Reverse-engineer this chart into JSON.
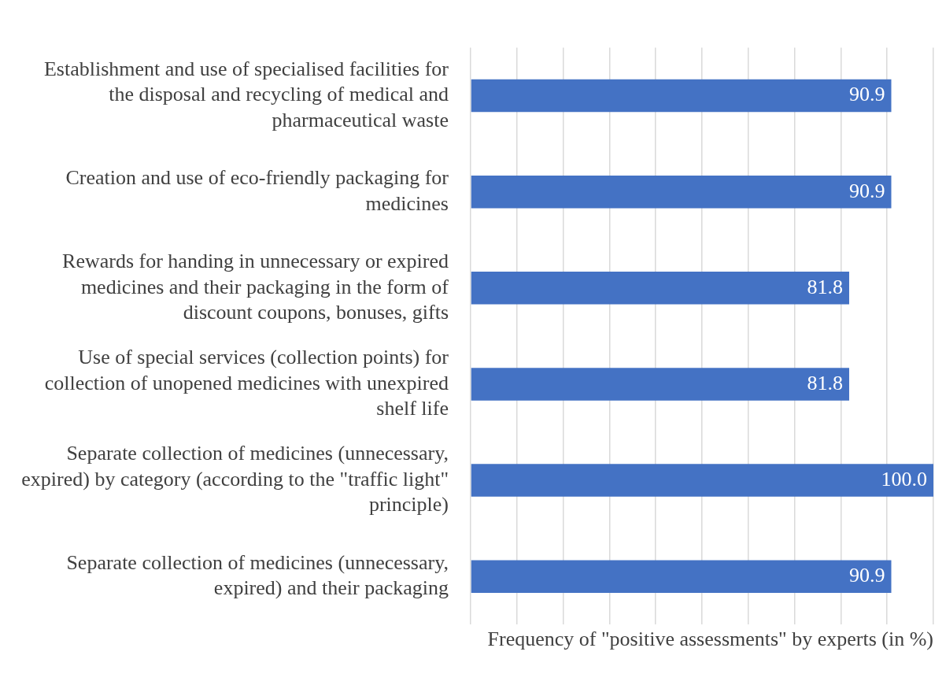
{
  "chart_data": {
    "type": "bar",
    "orientation": "horizontal",
    "xlabel": "Frequency of \"positive assessments\" by experts (in %)",
    "categories": [
      "Establishment and use of specialised facilities for the disposal and recycling of medical and pharmaceutical waste",
      "Creation and use of eco-friendly packaging for medicines",
      "Rewards for handing in unnecessary or expired medicines and their packaging in the form of discount coupons, bonuses, gifts",
      "Use of special services (collection points) for collection of unopened medicines with unexpired shelf life",
      "Separate collection of medicines (unnecessary, expired) by category (according to the \"traffic light\" principle)",
      "Separate collection of medicines (unnecessary, expired) and their packaging"
    ],
    "values": [
      90.9,
      90.9,
      81.8,
      81.8,
      100.0,
      90.9
    ],
    "color": "#4472c4",
    "xlim": [
      0,
      100
    ],
    "xticks": [
      {
        "value": 0,
        "label": null
      },
      {
        "value": 10,
        "label": null
      },
      {
        "value": 20,
        "label": null
      },
      {
        "value": 30,
        "label": null
      },
      {
        "value": 40,
        "label": null
      },
      {
        "value": 50,
        "label": null
      },
      {
        "value": 60,
        "label": null
      },
      {
        "value": 70,
        "label": null
      },
      {
        "value": 80,
        "label": null
      },
      {
        "value": 90,
        "label": null
      },
      {
        "value": 100,
        "label": null
      }
    ],
    "grid": "x",
    "tick_labels": "y",
    "value_labels": [
      "90.9",
      "90.9",
      "81.8",
      "81.8",
      "100.0",
      "90.9"
    ]
  }
}
